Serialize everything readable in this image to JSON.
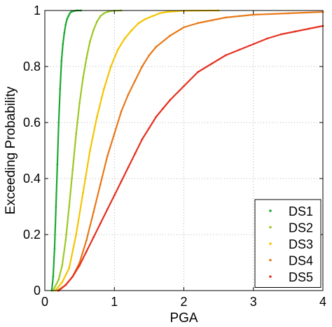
{
  "chart_data": {
    "type": "scatter",
    "title": "",
    "xlabel": "PGA",
    "ylabel": "Exceeding Probability",
    "xlim": [
      0,
      4
    ],
    "ylim": [
      0,
      1
    ],
    "x_ticks": [
      "0",
      "1",
      "2",
      "3",
      "4"
    ],
    "y_ticks": [
      "0",
      "0.2",
      "0.4",
      "0.6",
      "0.8",
      "1"
    ],
    "grid": true,
    "legend_position": "bottom-right",
    "series": [
      {
        "name": "DS1",
        "color": "#1aa832",
        "x": [
          0.1,
          0.12,
          0.14,
          0.16,
          0.18,
          0.2,
          0.22,
          0.24,
          0.26,
          0.28,
          0.3,
          0.32,
          0.34,
          0.36,
          0.38,
          0.4,
          0.43,
          0.47,
          0.52
        ],
        "y": [
          0.0,
          0.05,
          0.15,
          0.3,
          0.45,
          0.6,
          0.72,
          0.82,
          0.88,
          0.92,
          0.95,
          0.97,
          0.98,
          0.99,
          0.995,
          0.997,
          0.999,
          1.0,
          1.0
        ]
      },
      {
        "name": "DS2",
        "color": "#9cc824",
        "x": [
          0.12,
          0.2,
          0.25,
          0.3,
          0.35,
          0.4,
          0.45,
          0.5,
          0.55,
          0.6,
          0.65,
          0.7,
          0.75,
          0.8,
          0.85,
          0.9,
          0.95,
          1.0,
          1.1
        ],
        "y": [
          0.0,
          0.04,
          0.09,
          0.18,
          0.3,
          0.43,
          0.56,
          0.67,
          0.76,
          0.83,
          0.89,
          0.93,
          0.96,
          0.98,
          0.99,
          0.995,
          0.998,
          0.999,
          1.0
        ]
      },
      {
        "name": "DS3",
        "color": "#f5c400",
        "x": [
          0.15,
          0.25,
          0.35,
          0.45,
          0.55,
          0.65,
          0.75,
          0.85,
          0.95,
          1.05,
          1.15,
          1.25,
          1.35,
          1.45,
          1.55,
          1.65,
          1.75,
          2.0,
          2.5
        ],
        "y": [
          0.0,
          0.03,
          0.08,
          0.2,
          0.35,
          0.5,
          0.62,
          0.72,
          0.8,
          0.86,
          0.9,
          0.93,
          0.955,
          0.97,
          0.98,
          0.99,
          0.995,
          0.999,
          1.0
        ]
      },
      {
        "name": "DS4",
        "color": "#e87818",
        "x": [
          0.18,
          0.3,
          0.4,
          0.5,
          0.6,
          0.7,
          0.8,
          0.9,
          1.0,
          1.1,
          1.2,
          1.3,
          1.4,
          1.5,
          1.6,
          1.8,
          2.0,
          2.2,
          2.4,
          2.6,
          2.8,
          3.0,
          3.5,
          4.0
        ],
        "y": [
          0.0,
          0.02,
          0.05,
          0.1,
          0.18,
          0.28,
          0.38,
          0.48,
          0.56,
          0.64,
          0.7,
          0.75,
          0.8,
          0.84,
          0.87,
          0.91,
          0.94,
          0.955,
          0.965,
          0.975,
          0.98,
          0.985,
          0.99,
          0.995
        ]
      },
      {
        "name": "DS5",
        "color": "#e63020",
        "x": [
          0.2,
          0.3,
          0.4,
          0.5,
          0.6,
          0.7,
          0.8,
          0.9,
          1.0,
          1.1,
          1.2,
          1.3,
          1.4,
          1.5,
          1.6,
          1.7,
          1.8,
          2.0,
          2.2,
          2.4,
          2.6,
          2.8,
          3.0,
          3.2,
          3.4,
          3.6,
          3.8,
          4.0
        ],
        "y": [
          0.0,
          0.02,
          0.05,
          0.09,
          0.14,
          0.19,
          0.24,
          0.29,
          0.34,
          0.39,
          0.44,
          0.49,
          0.54,
          0.58,
          0.62,
          0.65,
          0.68,
          0.73,
          0.78,
          0.81,
          0.84,
          0.86,
          0.88,
          0.9,
          0.915,
          0.925,
          0.935,
          0.945
        ]
      }
    ]
  }
}
